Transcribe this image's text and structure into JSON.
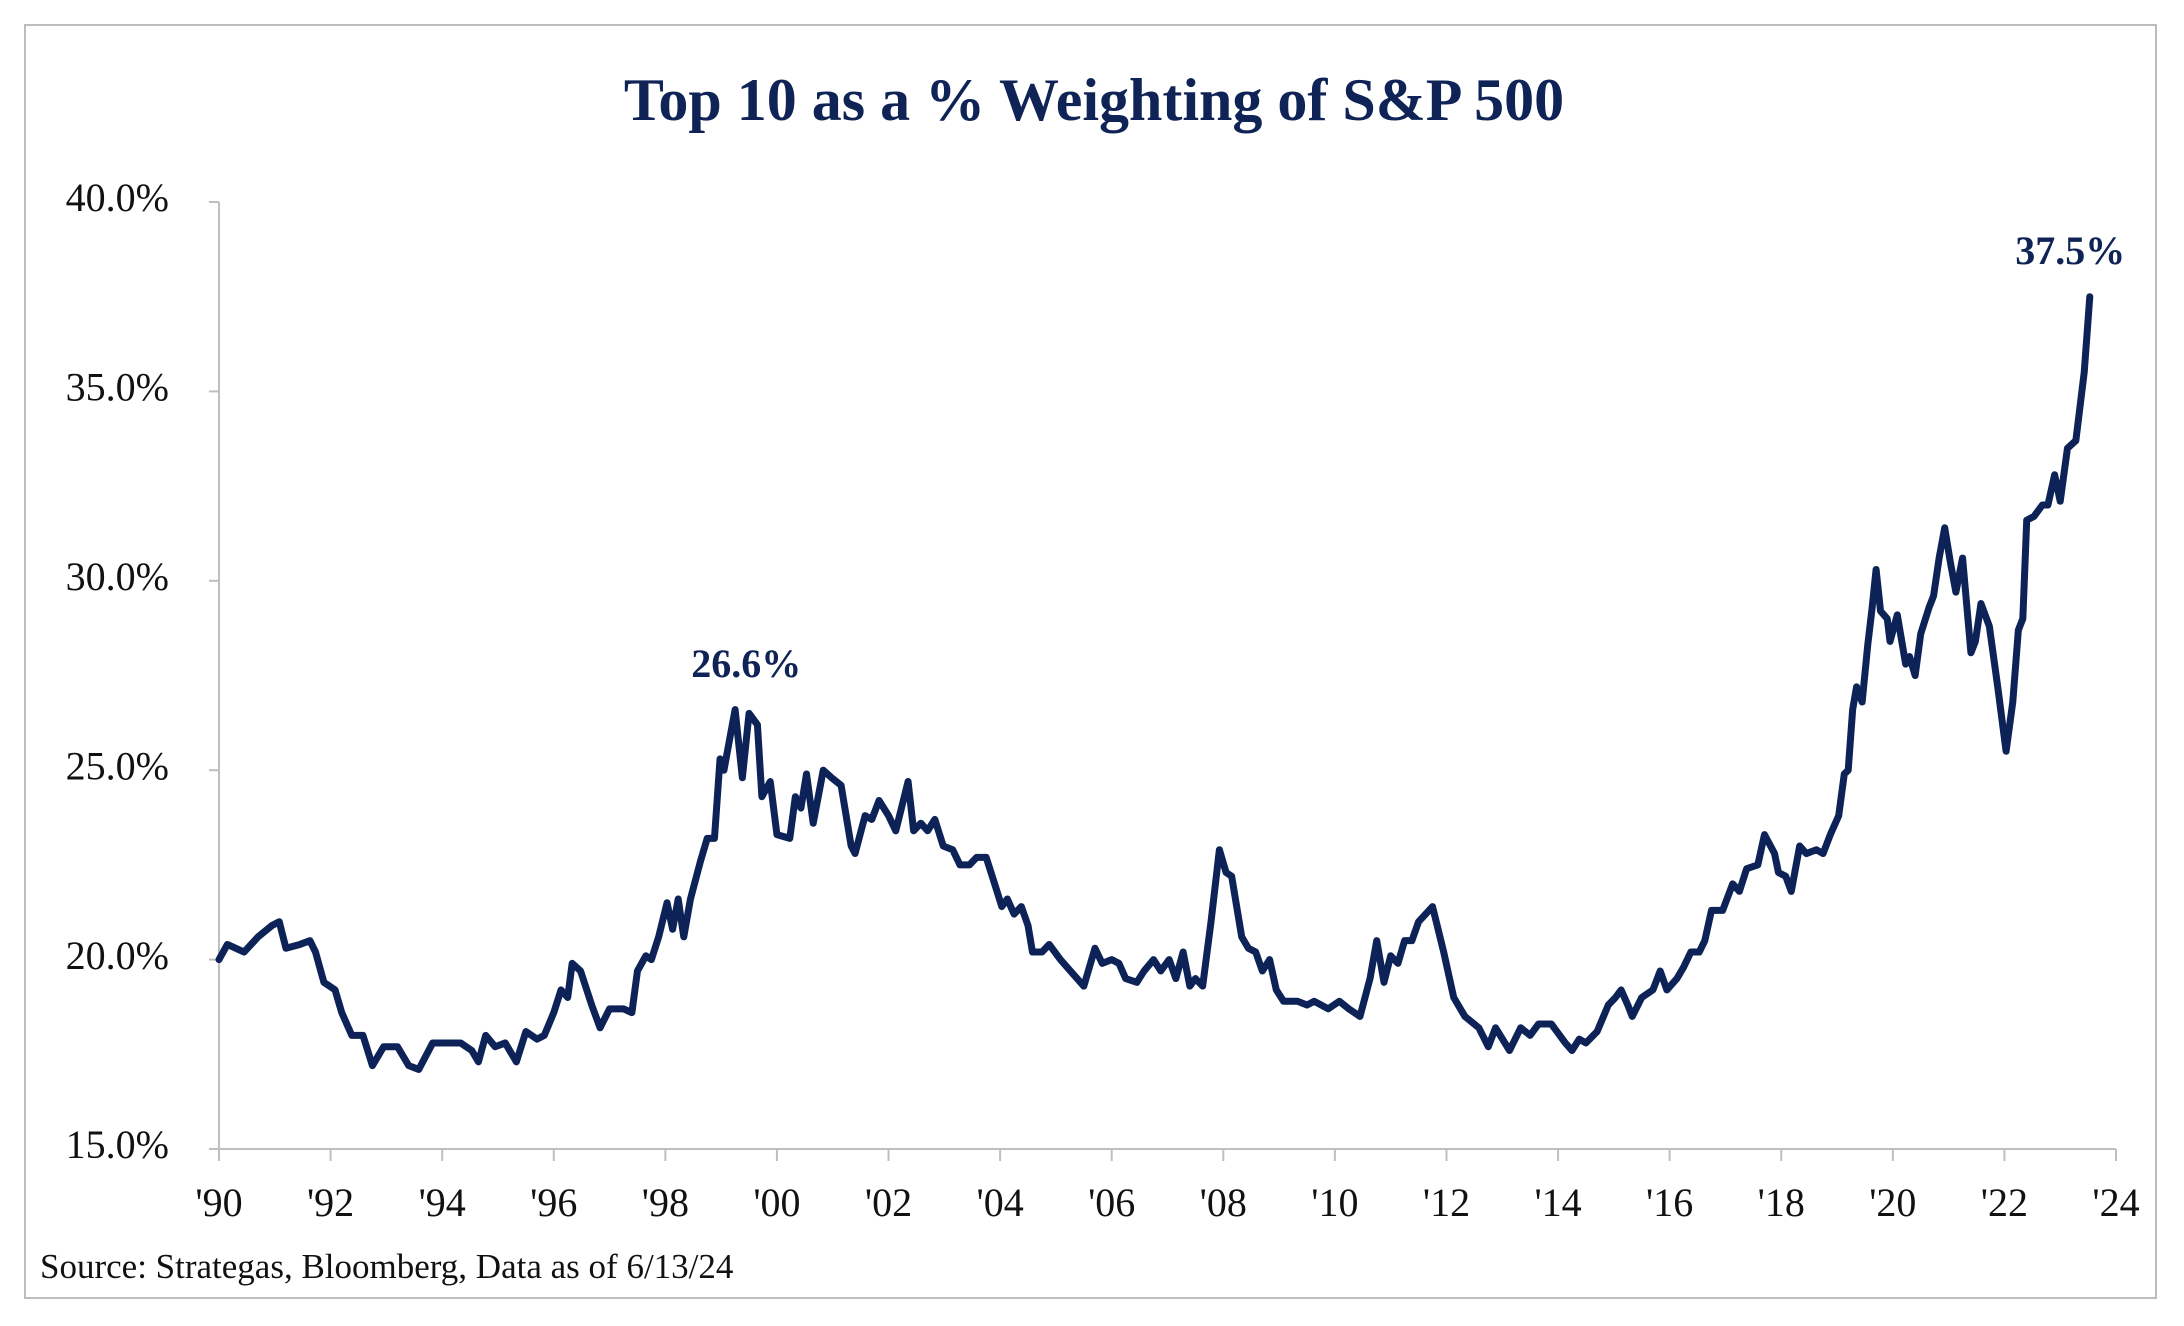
{
  "chart_data": {
    "type": "line",
    "title": "Top 10 as a % Weighting of S&P 500",
    "source": "Source: Strategas, Bloomberg, Data as of 6/13/24",
    "color": "#0d2357",
    "xlim": [
      1990,
      2024
    ],
    "ylim": [
      15,
      40
    ],
    "xticks": [
      {
        "value": 1990,
        "label": "'90"
      },
      {
        "value": 1992,
        "label": "'92"
      },
      {
        "value": 1994,
        "label": "'94"
      },
      {
        "value": 1996,
        "label": "'96"
      },
      {
        "value": 1998,
        "label": "'98"
      },
      {
        "value": 2000,
        "label": "'00"
      },
      {
        "value": 2002,
        "label": "'02"
      },
      {
        "value": 2004,
        "label": "'04"
      },
      {
        "value": 2006,
        "label": "'06"
      },
      {
        "value": 2008,
        "label": "'08"
      },
      {
        "value": 2010,
        "label": "'10"
      },
      {
        "value": 2012,
        "label": "'12"
      },
      {
        "value": 2014,
        "label": "'14"
      },
      {
        "value": 2016,
        "label": "'16"
      },
      {
        "value": 2018,
        "label": "'18"
      },
      {
        "value": 2020,
        "label": "'20"
      },
      {
        "value": 2022,
        "label": "'22"
      },
      {
        "value": 2024,
        "label": "'24"
      }
    ],
    "yticks": [
      {
        "value": 15,
        "label": "15.0%"
      },
      {
        "value": 20,
        "label": "20.0%"
      },
      {
        "value": 25,
        "label": "25.0%"
      },
      {
        "value": 30,
        "label": "30.0%"
      },
      {
        "value": 35,
        "label": "35.0%"
      },
      {
        "value": 40,
        "label": "40.0%"
      }
    ],
    "annotations": [
      {
        "label": "26.6%",
        "x": 1999.45,
        "value": 26.6
      },
      {
        "label": "37.5%",
        "x": 2023.18,
        "value": 37.5
      }
    ],
    "x": [
      1990.0,
      1990.15,
      1990.45,
      1990.7,
      1990.95,
      1991.08,
      1991.2,
      1991.45,
      1991.63,
      1991.73,
      1991.88,
      1992.08,
      1992.2,
      1992.38,
      1992.58,
      1992.75,
      1992.95,
      1993.2,
      1993.4,
      1993.58,
      1993.83,
      1994.08,
      1994.33,
      1994.53,
      1994.65,
      1994.78,
      1994.95,
      1995.13,
      1995.33,
      1995.5,
      1995.7,
      1995.83,
      1996.0,
      1996.13,
      1996.25,
      1996.33,
      1996.48,
      1996.68,
      1996.83,
      1997.0,
      1997.25,
      1997.4,
      1997.5,
      1997.65,
      1997.75,
      1997.88,
      1998.03,
      1998.13,
      1998.23,
      1998.33,
      1998.45,
      1998.63,
      1998.75,
      1998.88,
      1998.98,
      1999.05,
      1999.25,
      1999.38,
      1999.5,
      1999.65,
      1999.73,
      1999.88,
      2000.0,
      2000.23,
      2000.33,
      2000.43,
      2000.53,
      2000.65,
      2000.83,
      2000.98,
      2001.15,
      2001.33,
      2001.4,
      2001.58,
      2001.7,
      2001.83,
      2002.0,
      2002.13,
      2002.35,
      2002.45,
      2002.58,
      2002.7,
      2002.83,
      2002.98,
      2003.15,
      2003.28,
      2003.45,
      2003.58,
      2003.75,
      2003.88,
      2004.03,
      2004.13,
      2004.25,
      2004.38,
      2004.5,
      2004.58,
      2004.75,
      2004.88,
      2005.08,
      2005.2,
      2005.38,
      2005.5,
      2005.7,
      2005.83,
      2006.0,
      2006.13,
      2006.25,
      2006.45,
      2006.58,
      2006.75,
      2006.88,
      2007.03,
      2007.15,
      2007.28,
      2007.4,
      2007.5,
      2007.63,
      2007.78,
      2007.93,
      2008.05,
      2008.15,
      2008.33,
      2008.45,
      2008.58,
      2008.7,
      2008.83,
      2008.95,
      2009.08,
      2009.33,
      2009.5,
      2009.63,
      2009.88,
      2010.08,
      2010.25,
      2010.45,
      2010.63,
      2010.75,
      2010.88,
      2011.0,
      2011.13,
      2011.25,
      2011.38,
      2011.5,
      2011.75,
      2011.95,
      2012.13,
      2012.33,
      2012.58,
      2012.75,
      2012.88,
      2013.13,
      2013.33,
      2013.5,
      2013.65,
      2013.88,
      2013.98,
      2014.13,
      2014.25,
      2014.38,
      2014.5,
      2014.7,
      2014.9,
      2015.03,
      2015.13,
      2015.25,
      2015.33,
      2015.5,
      2015.7,
      2015.83,
      2015.95,
      2016.13,
      2016.25,
      2016.38,
      2016.53,
      2016.63,
      2016.75,
      2016.95,
      2017.13,
      2017.25,
      2017.38,
      2017.58,
      2017.7,
      2017.88,
      2017.95,
      2018.08,
      2018.18,
      2018.33,
      2018.45,
      2018.63,
      2018.75,
      2018.88,
      2019.03,
      2019.13,
      2019.2,
      2019.28,
      2019.35,
      2019.45,
      2019.55,
      2019.63,
      2019.7,
      2019.78,
      2019.9,
      2019.95,
      2020.08,
      2020.23,
      2020.3,
      2020.4,
      2020.5,
      2020.65,
      2020.73,
      2020.83,
      2020.93,
      2021.03,
      2021.13,
      2021.25,
      2021.4,
      2021.48,
      2021.58,
      2021.73,
      2021.88,
      2022.03,
      2022.15,
      2022.25,
      2022.33,
      2022.4,
      2022.53,
      2022.68,
      2022.78,
      2022.9,
      2023.0,
      2023.13,
      2023.28,
      2023.43,
      2023.53
    ],
    "values": [
      20.0,
      20.4,
      20.2,
      20.6,
      20.9,
      21.0,
      20.3,
      20.4,
      20.5,
      20.2,
      19.4,
      19.2,
      18.6,
      18.0,
      18.0,
      17.2,
      17.7,
      17.7,
      17.2,
      17.1,
      17.8,
      17.8,
      17.8,
      17.6,
      17.3,
      18.0,
      17.7,
      17.8,
      17.3,
      18.1,
      17.9,
      18.0,
      18.6,
      19.2,
      19.0,
      19.9,
      19.7,
      18.8,
      18.2,
      18.7,
      18.7,
      18.6,
      19.7,
      20.1,
      20.0,
      20.6,
      21.5,
      20.8,
      21.6,
      20.6,
      21.6,
      22.6,
      23.2,
      23.2,
      25.3,
      25.0,
      26.6,
      24.8,
      26.5,
      26.2,
      24.3,
      24.7,
      23.3,
      23.2,
      24.3,
      24.0,
      24.9,
      23.6,
      25.0,
      24.8,
      24.6,
      23.0,
      22.8,
      23.8,
      23.7,
      24.2,
      23.8,
      23.4,
      24.7,
      23.4,
      23.6,
      23.4,
      23.7,
      23.0,
      22.9,
      22.5,
      22.5,
      22.7,
      22.7,
      22.1,
      21.4,
      21.6,
      21.2,
      21.4,
      20.9,
      20.2,
      20.2,
      20.4,
      20.0,
      19.8,
      19.5,
      19.3,
      20.3,
      19.9,
      20.0,
      19.9,
      19.5,
      19.4,
      19.7,
      20.0,
      19.7,
      20.0,
      19.5,
      20.2,
      19.3,
      19.5,
      19.3,
      21.0,
      22.9,
      22.3,
      22.2,
      20.6,
      20.3,
      20.2,
      19.7,
      20.0,
      19.2,
      18.9,
      18.9,
      18.8,
      18.9,
      18.7,
      18.9,
      18.7,
      18.5,
      19.5,
      20.5,
      19.4,
      20.1,
      19.9,
      20.5,
      20.5,
      21.0,
      21.4,
      20.2,
      19.0,
      18.5,
      18.2,
      17.7,
      18.2,
      17.6,
      18.2,
      18.0,
      18.3,
      18.3,
      18.1,
      17.8,
      17.6,
      17.9,
      17.8,
      18.1,
      18.8,
      19.0,
      19.2,
      18.8,
      18.5,
      19.0,
      19.2,
      19.7,
      19.2,
      19.5,
      19.8,
      20.2,
      20.2,
      20.5,
      21.3,
      21.3,
      22.0,
      21.8,
      22.4,
      22.5,
      23.3,
      22.8,
      22.3,
      22.2,
      21.8,
      23.0,
      22.8,
      22.9,
      22.8,
      23.3,
      23.8,
      24.9,
      25.0,
      26.6,
      27.2,
      26.8,
      28.3,
      29.3,
      30.3,
      29.2,
      29.0,
      28.4,
      29.1,
      27.8,
      28.0,
      27.5,
      28.6,
      29.3,
      29.6,
      30.6,
      31.4,
      30.5,
      29.7,
      30.6,
      28.1,
      28.4,
      29.4,
      28.8,
      27.2,
      25.5,
      26.8,
      28.7,
      29.0,
      31.6,
      31.7,
      32.0,
      32.0,
      32.8,
      32.1,
      33.5,
      33.7,
      35.5,
      37.5
    ]
  }
}
